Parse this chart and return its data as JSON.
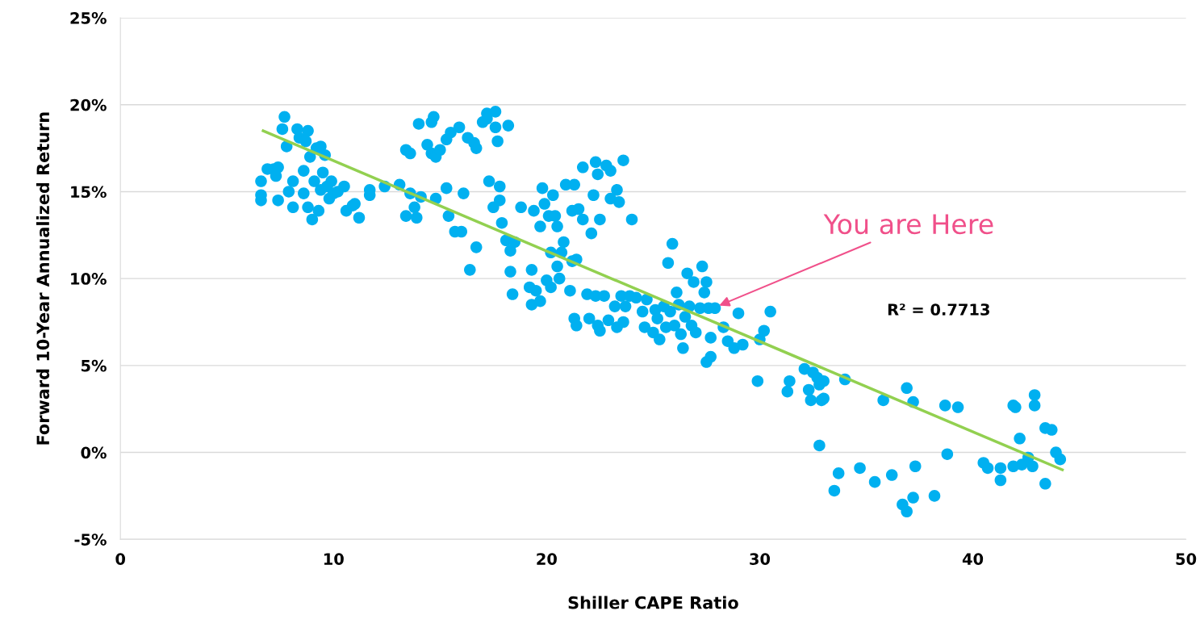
{
  "chart_data": {
    "type": "scatter",
    "xlabel": "Shiller CAPE Ratio",
    "ylabel": "Forward 10-Year Annualized Return",
    "xlim": [
      0,
      50
    ],
    "xticks": [
      0,
      10,
      20,
      30,
      40,
      50
    ],
    "ylim": [
      -5,
      25
    ],
    "yticks": [
      {
        "value": -5,
        "label": "-5%"
      },
      {
        "value": 0,
        "label": "0%"
      },
      {
        "value": 5,
        "label": "5%"
      },
      {
        "value": 10,
        "label": "10%"
      },
      {
        "value": 15,
        "label": "15%"
      },
      {
        "value": 20,
        "label": "20%"
      },
      {
        "value": 25,
        "label": "25%"
      }
    ],
    "grid": "y",
    "marker": "circle",
    "annotations": [
      {
        "text": "You are Here",
        "x": 28.0,
        "y": 8.4
      },
      "R² = 0.7713"
    ],
    "series": [
      {
        "color": "#00b0f0",
        "x": [
          6.6,
          6.6,
          6.6,
          6.9,
          7.2,
          7.3,
          7.4,
          7.4,
          7.6,
          7.7,
          7.8,
          7.9,
          8.1,
          8.1,
          8.3,
          8.4,
          8.6,
          8.6,
          8.7,
          8.8,
          8.8,
          8.9,
          9.0,
          9.1,
          9.2,
          9.3,
          9.4,
          9.4,
          9.5,
          9.6,
          9.7,
          9.8,
          9.9,
          10.0,
          10.2,
          10.5,
          10.6,
          10.9,
          11.0,
          11.2,
          11.7,
          11.7,
          12.4,
          13.1,
          13.4,
          13.4,
          13.6,
          13.6,
          13.8,
          13.9,
          14.0,
          14.1,
          14.6,
          14.4,
          14.6,
          14.7,
          14.8,
          15.0,
          14.8,
          15.4,
          15.3,
          15.3,
          15.5,
          15.7,
          15.9,
          16.0,
          16.1,
          16.3,
          16.4,
          16.6,
          16.7,
          16.7,
          17.0,
          17.2,
          17.2,
          17.3,
          17.5,
          17.6,
          17.6,
          17.7,
          17.8,
          17.8,
          17.9,
          18.1,
          18.2,
          18.3,
          18.4,
          18.3,
          18.5,
          18.8,
          19.2,
          19.3,
          19.3,
          19.4,
          19.5,
          19.7,
          19.7,
          19.8,
          19.9,
          20.0,
          20.1,
          20.2,
          20.2,
          20.3,
          20.4,
          20.5,
          20.5,
          20.6,
          20.7,
          20.8,
          20.9,
          21.1,
          21.2,
          21.2,
          21.3,
          21.3,
          21.4,
          21.4,
          21.5,
          21.7,
          21.7,
          21.9,
          22.0,
          22.1,
          22.2,
          22.3,
          22.3,
          22.4,
          22.4,
          22.5,
          22.5,
          22.7,
          22.8,
          22.9,
          23.0,
          23.0,
          23.2,
          23.3,
          23.3,
          23.4,
          23.5,
          23.6,
          23.6,
          23.7,
          23.9,
          24.0,
          24.2,
          24.5,
          24.6,
          24.7,
          25.0,
          25.1,
          25.2,
          25.3,
          25.5,
          25.6,
          25.7,
          25.8,
          25.9,
          26.0,
          26.1,
          26.2,
          26.3,
          26.4,
          26.5,
          26.6,
          26.7,
          26.8,
          26.9,
          27.0,
          27.2,
          27.3,
          27.4,
          27.5,
          27.5,
          27.6,
          27.7,
          27.7,
          27.9,
          28.3,
          28.5,
          28.8,
          29.0,
          29.2,
          29.9,
          30.0,
          30.2,
          30.5,
          31.3,
          31.4,
          32.1,
          32.3,
          32.4,
          32.5,
          32.7,
          32.8,
          32.8,
          32.9,
          33.0,
          33.0,
          33.5,
          33.7,
          34.0,
          34.7,
          35.4,
          35.8,
          36.2,
          36.7,
          36.9,
          36.9,
          37.2,
          37.2,
          37.3,
          38.2,
          38.7,
          38.8,
          39.3,
          40.5,
          40.7,
          41.3,
          41.3,
          41.9,
          41.9,
          42.0,
          42.2,
          42.3,
          42.6,
          42.8,
          42.9,
          42.9,
          43.4,
          43.4,
          43.7,
          43.9,
          44.1
        ],
        "values": [
          15.6,
          14.8,
          14.5,
          16.3,
          16.3,
          15.9,
          14.5,
          16.4,
          18.6,
          19.3,
          17.6,
          15.0,
          14.1,
          15.6,
          18.6,
          18.1,
          16.2,
          14.9,
          17.9,
          18.5,
          14.1,
          17.0,
          13.4,
          15.6,
          17.5,
          13.9,
          15.1,
          17.6,
          16.1,
          17.1,
          15.3,
          14.6,
          15.6,
          14.9,
          15.0,
          15.3,
          13.9,
          14.2,
          14.3,
          13.5,
          15.1,
          14.8,
          15.3,
          15.4,
          13.6,
          17.4,
          14.9,
          17.2,
          14.1,
          13.5,
          18.9,
          14.7,
          17.2,
          17.7,
          19.0,
          19.3,
          17.0,
          17.4,
          14.6,
          13.6,
          15.2,
          18.0,
          18.4,
          12.7,
          18.7,
          12.7,
          14.9,
          18.1,
          10.5,
          17.8,
          11.8,
          17.5,
          19.0,
          19.5,
          19.2,
          15.6,
          14.1,
          19.6,
          18.7,
          17.9,
          15.3,
          14.5,
          13.2,
          12.2,
          18.8,
          10.4,
          9.1,
          11.6,
          12.1,
          14.1,
          9.5,
          8.5,
          10.5,
          13.9,
          9.3,
          13.0,
          8.7,
          15.2,
          14.3,
          9.9,
          13.6,
          9.5,
          11.5,
          14.8,
          13.6,
          10.7,
          13.0,
          10.0,
          11.5,
          12.1,
          15.4,
          9.3,
          13.9,
          11.0,
          15.4,
          7.7,
          11.1,
          7.3,
          14.0,
          16.4,
          13.4,
          9.1,
          7.7,
          12.6,
          14.8,
          9.0,
          16.7,
          16.0,
          7.3,
          13.4,
          7.0,
          9.0,
          16.5,
          7.6,
          14.6,
          16.2,
          8.4,
          7.2,
          15.1,
          14.4,
          9.0,
          7.5,
          16.8,
          8.4,
          9.0,
          13.4,
          8.9,
          8.1,
          7.2,
          8.8,
          6.9,
          8.2,
          7.7,
          6.5,
          8.4,
          7.2,
          10.9,
          8.1,
          12.0,
          7.3,
          9.2,
          8.5,
          6.8,
          6.0,
          7.8,
          10.3,
          8.4,
          7.3,
          9.8,
          6.9,
          8.3,
          10.7,
          9.2,
          5.2,
          9.8,
          8.3,
          6.6,
          5.5,
          8.3,
          7.2,
          6.4,
          6.0,
          8.0,
          6.2,
          4.1,
          6.5,
          7.0,
          8.1,
          3.5,
          4.1,
          4.8,
          3.6,
          3.0,
          4.6,
          4.3,
          3.9,
          0.4,
          3.0,
          4.1,
          3.1,
          -2.2,
          -1.2,
          4.2,
          -0.9,
          -1.7,
          3.0,
          -1.3,
          -3.0,
          3.7,
          -3.4,
          -2.6,
          2.9,
          -0.8,
          -2.5,
          2.7,
          -0.1,
          2.6,
          -0.6,
          -0.9,
          -1.6,
          -0.9,
          2.7,
          -0.8,
          2.6,
          0.8,
          -0.7,
          -0.3,
          -0.8,
          3.3,
          2.7,
          1.4,
          -1.8,
          1.3,
          0.0,
          -0.4
        ]
      },
      {
        "type": "line",
        "color": "#92d050",
        "marker": "none",
        "x": [
          6.7,
          44.2
        ],
        "values": [
          18.5,
          -1.0
        ]
      }
    ]
  }
}
